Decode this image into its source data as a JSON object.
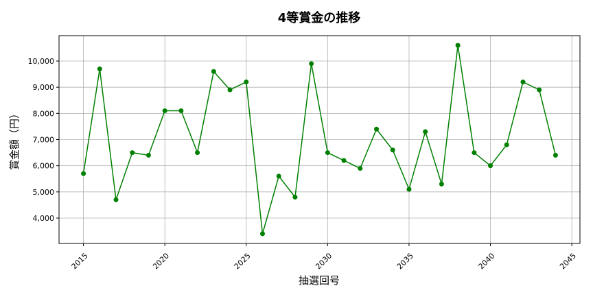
{
  "chart_data": {
    "type": "line",
    "title": "4等賞金の推移",
    "xlabel": "抽選回号",
    "ylabel": "賞金額（円）",
    "x": [
      2015,
      2016,
      2017,
      2018,
      2019,
      2020,
      2021,
      2022,
      2023,
      2024,
      2025,
      2026,
      2027,
      2028,
      2029,
      2030,
      2031,
      2032,
      2033,
      2034,
      2035,
      2036,
      2037,
      2038,
      2039,
      2040,
      2041,
      2042,
      2043,
      2044
    ],
    "series": [
      {
        "values": [
          5700,
          9700,
          4700,
          6500,
          6400,
          8100,
          8100,
          6500,
          9600,
          8900,
          9200,
          3400,
          5600,
          4800,
          9900,
          6500,
          6200,
          5900,
          7400,
          6600,
          5100,
          7300,
          5300,
          10600,
          6500,
          6000,
          6800,
          9200,
          8900,
          6400
        ],
        "color": "#008000",
        "marker": "circle"
      }
    ],
    "xticks": [
      2015,
      2020,
      2025,
      2030,
      2035,
      2040,
      2045
    ],
    "xtick_labels": [
      "2015",
      "2020",
      "2025",
      "2030",
      "2035",
      "2040",
      "2045"
    ],
    "yticks": [
      4000,
      5000,
      6000,
      7000,
      8000,
      9000,
      10000
    ],
    "ytick_labels": [
      "4,000",
      "5,000",
      "6,000",
      "7,000",
      "8,000",
      "9,000",
      "10,000"
    ],
    "xlim": [
      2013.5,
      2045.5
    ],
    "ylim": [
      3030,
      10970
    ],
    "grid": true
  }
}
